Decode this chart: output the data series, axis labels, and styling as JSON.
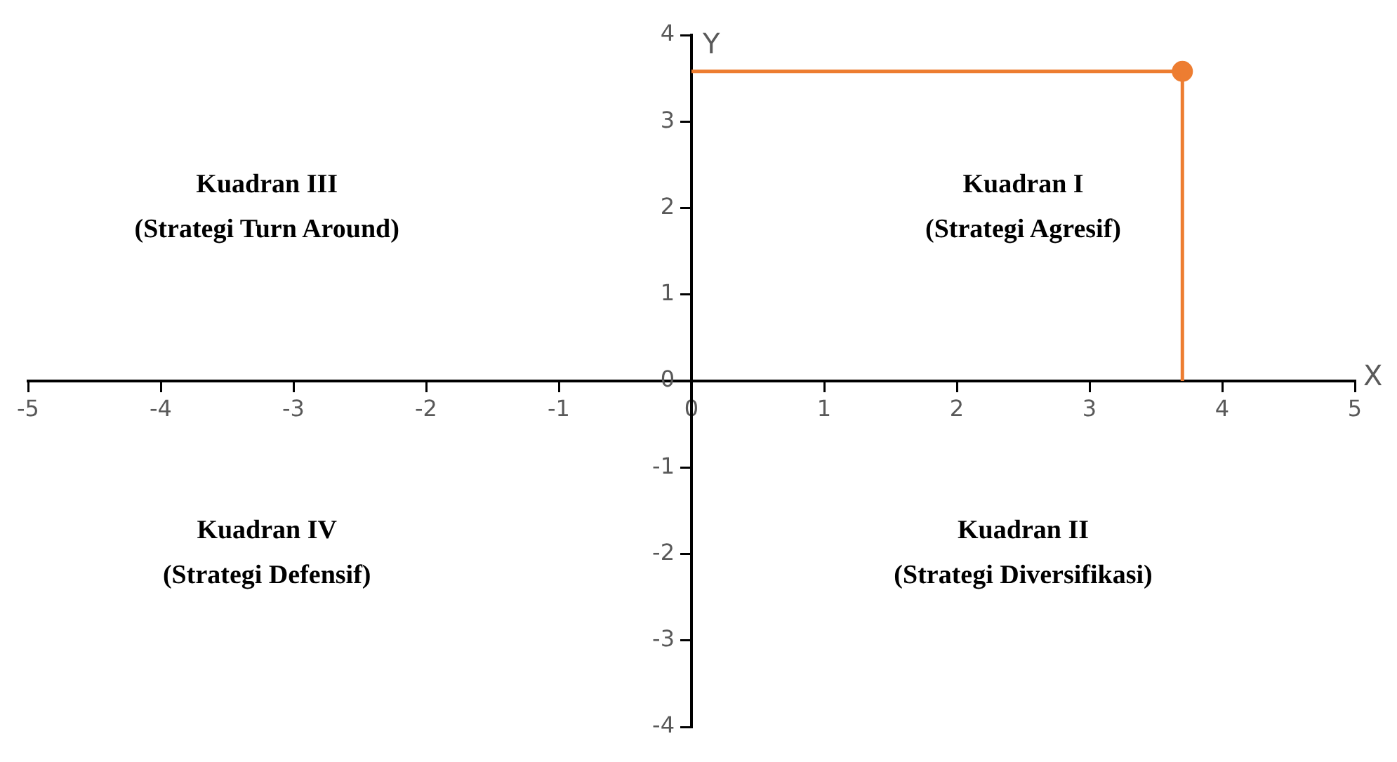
{
  "chart_data": {
    "type": "scatter",
    "xlabel": "X",
    "ylabel": "Y",
    "xlim": [
      -5,
      5
    ],
    "xticks": [
      -5,
      -4,
      -3,
      -2,
      -1,
      0,
      1,
      2,
      3,
      4,
      5
    ],
    "ylim": [
      -4,
      4
    ],
    "yticks": [
      -4,
      -3,
      -2,
      -1,
      0,
      1,
      2,
      3,
      4
    ],
    "grid": false,
    "legend": false,
    "marker": "circle",
    "annotations": [
      "Kuadran III\n(Strategi Turn Around)",
      "Kuadran I\n(Strategi Agresif)",
      "Kuadran IV\n(Strategi Defensif)",
      "Kuadran II\n(Strategi Diversifikasi)"
    ],
    "series": [
      {
        "color": "#ed7d31",
        "x": [
          3.7
        ],
        "values": [
          3.58
        ]
      }
    ]
  }
}
